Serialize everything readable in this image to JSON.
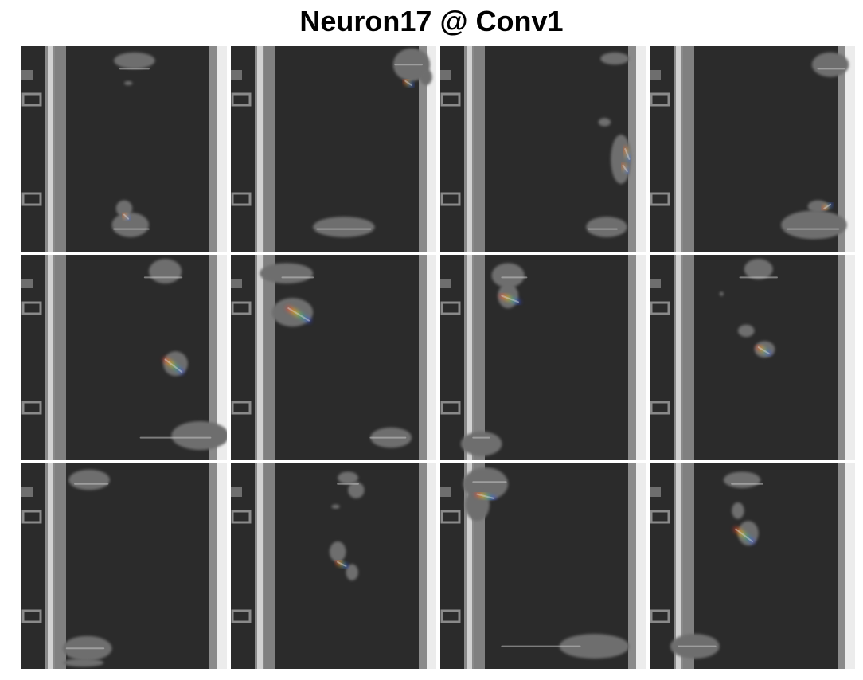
{
  "title": "Neuron17 @ Conv1",
  "grid": {
    "rows": 3,
    "cols": 4
  },
  "colors": {
    "background": "#ffffff",
    "road": "#2b2b2b",
    "line_light": "#d2d2d2",
    "line_mid": "#8a8a8a",
    "blob": "#6e6e6e",
    "hot_red": "#ff3b30",
    "hot_green": "#34c759",
    "hot_blue": "#3a4bff",
    "hot_yellow": "#ffcc00"
  },
  "panels": [
    {
      "row": 0,
      "col": 0,
      "blobs": [
        [
          0.55,
          0.07,
          0.1,
          0.04
        ],
        [
          0.52,
          0.18,
          0.02,
          0.01
        ],
        [
          0.53,
          0.87,
          0.09,
          0.06
        ],
        [
          0.5,
          0.79,
          0.04,
          0.04
        ]
      ],
      "heat": [
        [
          0.48,
          0.11,
          0.62,
          0.11
        ],
        [
          0.45,
          0.89,
          0.62,
          0.89
        ],
        [
          0.5,
          0.82,
          0.52,
          0.84
        ]
      ]
    },
    {
      "row": 0,
      "col": 1,
      "blobs": [
        [
          0.88,
          0.09,
          0.09,
          0.08
        ],
        [
          0.55,
          0.88,
          0.15,
          0.05
        ],
        [
          0.95,
          0.15,
          0.03,
          0.04
        ]
      ],
      "heat": [
        [
          0.8,
          0.09,
          0.93,
          0.09
        ],
        [
          0.85,
          0.17,
          0.88,
          0.19
        ],
        [
          0.42,
          0.89,
          0.68,
          0.89
        ]
      ]
    },
    {
      "row": 0,
      "col": 2,
      "blobs": [
        [
          0.85,
          0.06,
          0.07,
          0.03
        ],
        [
          0.88,
          0.55,
          0.05,
          0.12
        ],
        [
          0.8,
          0.37,
          0.03,
          0.02
        ],
        [
          0.81,
          0.88,
          0.1,
          0.05
        ]
      ],
      "heat": [
        [
          0.9,
          0.5,
          0.92,
          0.55
        ],
        [
          0.89,
          0.58,
          0.91,
          0.61
        ],
        [
          0.72,
          0.89,
          0.86,
          0.89
        ]
      ]
    },
    {
      "row": 0,
      "col": 3,
      "blobs": [
        [
          0.88,
          0.09,
          0.09,
          0.06
        ],
        [
          0.8,
          0.87,
          0.16,
          0.07
        ],
        [
          0.82,
          0.78,
          0.05,
          0.03
        ]
      ],
      "heat": [
        [
          0.82,
          0.11,
          0.95,
          0.11
        ],
        [
          0.67,
          0.89,
          0.92,
          0.89
        ],
        [
          0.85,
          0.79,
          0.88,
          0.77
        ]
      ]
    },
    {
      "row": 1,
      "col": 0,
      "blobs": [
        [
          0.7,
          0.08,
          0.08,
          0.06
        ],
        [
          0.75,
          0.53,
          0.06,
          0.06
        ],
        [
          0.87,
          0.88,
          0.14,
          0.07
        ]
      ],
      "heat": [
        [
          0.6,
          0.11,
          0.78,
          0.11
        ],
        [
          0.7,
          0.51,
          0.78,
          0.57
        ],
        [
          0.58,
          0.89,
          0.92,
          0.89
        ]
      ]
    },
    {
      "row": 1,
      "col": 1,
      "blobs": [
        [
          0.27,
          0.09,
          0.13,
          0.05
        ],
        [
          0.3,
          0.28,
          0.1,
          0.07
        ],
        [
          0.78,
          0.89,
          0.1,
          0.05
        ]
      ],
      "heat": [
        [
          0.25,
          0.11,
          0.4,
          0.11
        ],
        [
          0.28,
          0.26,
          0.38,
          0.32
        ],
        [
          0.68,
          0.89,
          0.85,
          0.89
        ]
      ]
    },
    {
      "row": 1,
      "col": 2,
      "blobs": [
        [
          0.33,
          0.1,
          0.08,
          0.06
        ],
        [
          0.33,
          0.2,
          0.05,
          0.06
        ],
        [
          0.2,
          0.92,
          0.1,
          0.06
        ]
      ],
      "heat": [
        [
          0.3,
          0.11,
          0.42,
          0.11
        ],
        [
          0.3,
          0.2,
          0.38,
          0.23
        ],
        [
          0.16,
          0.89,
          0.24,
          0.89
        ]
      ]
    },
    {
      "row": 1,
      "col": 3,
      "blobs": [
        [
          0.53,
          0.07,
          0.07,
          0.05
        ],
        [
          0.47,
          0.37,
          0.04,
          0.03
        ],
        [
          0.56,
          0.46,
          0.05,
          0.04
        ],
        [
          0.35,
          0.19,
          0.01,
          0.01
        ]
      ],
      "heat": [
        [
          0.44,
          0.11,
          0.62,
          0.11
        ],
        [
          0.53,
          0.45,
          0.58,
          0.48
        ]
      ]
    },
    {
      "row": 2,
      "col": 0,
      "blobs": [
        [
          0.33,
          0.08,
          0.1,
          0.05
        ],
        [
          0.32,
          0.9,
          0.12,
          0.06
        ],
        [
          0.3,
          0.97,
          0.1,
          0.02
        ]
      ],
      "heat": [
        [
          0.26,
          0.1,
          0.42,
          0.1
        ],
        [
          0.22,
          0.9,
          0.4,
          0.9
        ]
      ]
    },
    {
      "row": 2,
      "col": 1,
      "blobs": [
        [
          0.57,
          0.07,
          0.05,
          0.03
        ],
        [
          0.61,
          0.13,
          0.04,
          0.04
        ],
        [
          0.52,
          0.43,
          0.04,
          0.05
        ],
        [
          0.59,
          0.53,
          0.03,
          0.04
        ],
        [
          0.51,
          0.21,
          0.02,
          0.01
        ]
      ],
      "heat": [
        [
          0.52,
          0.1,
          0.62,
          0.1
        ],
        [
          0.52,
          0.48,
          0.56,
          0.5
        ]
      ]
    },
    {
      "row": 2,
      "col": 2,
      "blobs": [
        [
          0.22,
          0.1,
          0.11,
          0.08
        ],
        [
          0.18,
          0.2,
          0.06,
          0.08
        ],
        [
          0.75,
          0.89,
          0.17,
          0.06
        ]
      ],
      "heat": [
        [
          0.16,
          0.09,
          0.32,
          0.09
        ],
        [
          0.18,
          0.15,
          0.26,
          0.17
        ],
        [
          0.3,
          0.89,
          0.68,
          0.89
        ]
      ]
    },
    {
      "row": 2,
      "col": 3,
      "blobs": [
        [
          0.45,
          0.08,
          0.09,
          0.04
        ],
        [
          0.43,
          0.23,
          0.03,
          0.04
        ],
        [
          0.48,
          0.34,
          0.05,
          0.06
        ],
        [
          0.22,
          0.89,
          0.12,
          0.06
        ]
      ],
      "heat": [
        [
          0.4,
          0.1,
          0.55,
          0.1
        ],
        [
          0.42,
          0.32,
          0.5,
          0.38
        ],
        [
          0.14,
          0.89,
          0.32,
          0.89
        ]
      ]
    }
  ]
}
